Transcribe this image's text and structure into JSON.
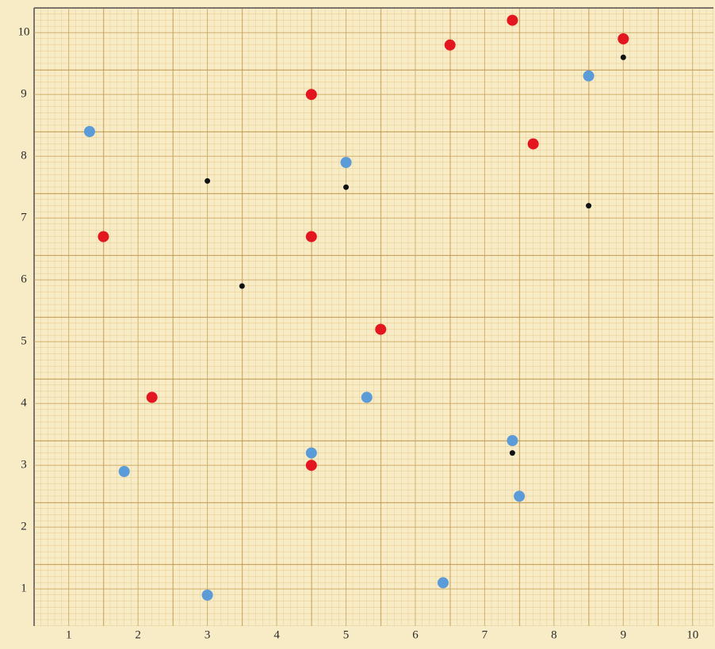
{
  "chart_data": {
    "type": "scatter",
    "xlim": [
      0.5,
      10.3
    ],
    "ylim": [
      0.4,
      10.4
    ],
    "xticks": [
      1,
      2,
      3,
      4,
      5,
      6,
      7,
      8,
      9,
      10
    ],
    "yticks": [
      1,
      2,
      3,
      4,
      5,
      6,
      7,
      8,
      9,
      10
    ],
    "grid": true,
    "series": [
      {
        "color": "#e3151f",
        "marker_radius": 7,
        "x": [
          1.5,
          2.2,
          4.5,
          4.5,
          4.5,
          5.5,
          6.5,
          7.4,
          7.7,
          9.0
        ],
        "values": [
          6.7,
          4.1,
          9.0,
          6.7,
          3.0,
          5.2,
          9.8,
          10.2,
          8.2,
          9.9
        ]
      },
      {
        "color": "#5b9bd8",
        "marker_radius": 7,
        "x": [
          1.3,
          1.8,
          3.0,
          4.5,
          5.0,
          5.3,
          6.4,
          7.4,
          7.5,
          8.5
        ],
        "values": [
          8.4,
          2.9,
          0.9,
          3.2,
          7.9,
          4.1,
          1.1,
          3.4,
          2.5,
          9.3
        ]
      },
      {
        "color": "#111111",
        "marker_radius": 3.5,
        "x": [
          3.0,
          3.5,
          5.0,
          7.4,
          8.5,
          9.0
        ],
        "values": [
          7.6,
          5.9,
          7.5,
          3.2,
          7.2,
          9.6
        ]
      }
    ]
  }
}
